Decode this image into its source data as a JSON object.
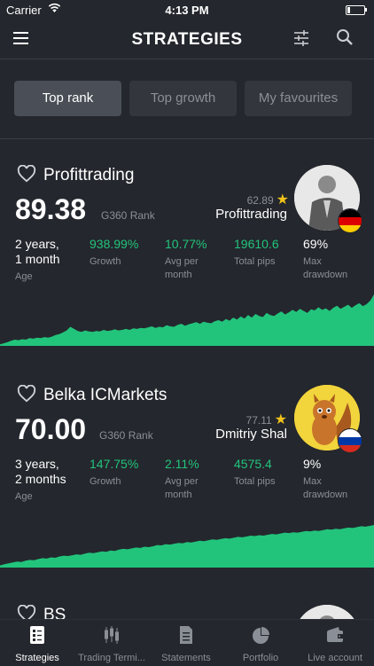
{
  "status": {
    "carrier": "Carrier",
    "time": "4:13 PM"
  },
  "header": {
    "title": "STRATEGIES"
  },
  "tabs": [
    {
      "label": "Top rank",
      "active": true
    },
    {
      "label": "Top growth",
      "active": false
    },
    {
      "label": "My favourites",
      "active": false
    }
  ],
  "colors": {
    "accent_green": "#22c47c",
    "star": "#f2c31a",
    "background": "#24272d"
  },
  "strategies": [
    {
      "name": "Profittrading",
      "score": "89.38",
      "rank_label": "G360 Rank",
      "rating": "62.89",
      "author": "Profittrading",
      "age": "2 years,",
      "age2": "1 month",
      "age_label": "Age",
      "growth": "938.99%",
      "growth_label": "Growth",
      "avg": "10.77%",
      "avg_label": "Avg per",
      "avg_label2": "month",
      "pips": "19610.6",
      "pips_label": "Total pips",
      "drawdown": "69%",
      "drawdown_label": "Max",
      "drawdown_label2": "drawdown",
      "flag": "germany-flag-icon",
      "chart": [
        0.03,
        0.05,
        0.07,
        0.1,
        0.12,
        0.11,
        0.13,
        0.12,
        0.15,
        0.14,
        0.16,
        0.15,
        0.17,
        0.16,
        0.18,
        0.21,
        0.23,
        0.26,
        0.3,
        0.37,
        0.33,
        0.29,
        0.27,
        0.3,
        0.28,
        0.27,
        0.29,
        0.28,
        0.31,
        0.29,
        0.3,
        0.32,
        0.3,
        0.31,
        0.33,
        0.31,
        0.34,
        0.33,
        0.35,
        0.34,
        0.36,
        0.38,
        0.35,
        0.37,
        0.36,
        0.4,
        0.38,
        0.37,
        0.41,
        0.43,
        0.39,
        0.42,
        0.44,
        0.46,
        0.43,
        0.47,
        0.45,
        0.44,
        0.48,
        0.5,
        0.47,
        0.52,
        0.49,
        0.55,
        0.51,
        0.57,
        0.53,
        0.6,
        0.55,
        0.62,
        0.58,
        0.56,
        0.64,
        0.6,
        0.58,
        0.63,
        0.67,
        0.61,
        0.65,
        0.7,
        0.66,
        0.72,
        0.68,
        0.64,
        0.71,
        0.69,
        0.75,
        0.7,
        0.73,
        0.68,
        0.74,
        0.78,
        0.72,
        0.76,
        0.8,
        0.74,
        0.79,
        0.83,
        0.77,
        0.81,
        0.88,
        1.0
      ]
    },
    {
      "name": "Belka ICMarkets",
      "score": "70.00",
      "rank_label": "G360 Rank",
      "rating": "77.11",
      "author": "Dmitriy Shal",
      "age": "3 years,",
      "age2": "2 months",
      "age_label": "Age",
      "growth": "147.75%",
      "growth_label": "Growth",
      "avg": "2.11%",
      "avg_label": "Avg per",
      "avg_label2": "month",
      "pips": "4575.4",
      "pips_label": "Total pips",
      "drawdown": "9%",
      "drawdown_label": "Max",
      "drawdown_label2": "drawdown",
      "flag": "russia-flag-icon",
      "chart": [
        0.05,
        0.08,
        0.1,
        0.12,
        0.14,
        0.13,
        0.16,
        0.18,
        0.17,
        0.2,
        0.22,
        0.21,
        0.24,
        0.23,
        0.26,
        0.28,
        0.27,
        0.29,
        0.31,
        0.3,
        0.33,
        0.35,
        0.34,
        0.36,
        0.38,
        0.37,
        0.4,
        0.39,
        0.42,
        0.44,
        0.43,
        0.45,
        0.47,
        0.46,
        0.49,
        0.48,
        0.5,
        0.53,
        0.52,
        0.55,
        0.54,
        0.56,
        0.58,
        0.57,
        0.6,
        0.59,
        0.61,
        0.63,
        0.62,
        0.64,
        0.66,
        0.65,
        0.67,
        0.69,
        0.68,
        0.7,
        0.72,
        0.71,
        0.73,
        0.75,
        0.74,
        0.76,
        0.75,
        0.77,
        0.79,
        0.78,
        0.8,
        0.82,
        0.81,
        0.83,
        0.82,
        0.84,
        0.86,
        0.85,
        0.87,
        0.86,
        0.88,
        0.9,
        0.89,
        0.91,
        0.9,
        0.92,
        0.94,
        0.93,
        0.95,
        0.97,
        0.96,
        0.98,
        1.0
      ]
    },
    {
      "name": "BS"
    }
  ],
  "nav": [
    {
      "label": "Strategies",
      "icon": "strategies-icon",
      "active": true
    },
    {
      "label": "Trading Termi...",
      "icon": "candlestick-icon",
      "active": false
    },
    {
      "label": "Statements",
      "icon": "document-icon",
      "active": false
    },
    {
      "label": "Portfolio",
      "icon": "pie-chart-icon",
      "active": false
    },
    {
      "label": "Live account",
      "icon": "wallet-icon",
      "active": false
    }
  ]
}
